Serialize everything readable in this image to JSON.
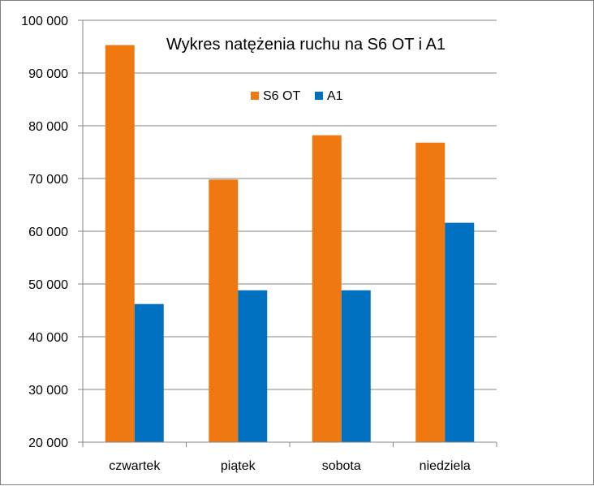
{
  "chart_data": {
    "type": "bar",
    "title": "Wykres natężenia ruchu na S6 OT i A1",
    "categories": [
      "czwartek",
      "piątek",
      "sobota",
      "niedziela"
    ],
    "series": [
      {
        "name": "S6 OT",
        "color": "#f07810",
        "values": [
          95300,
          69800,
          78200,
          76800
        ]
      },
      {
        "name": "A1",
        "color": "#0070c0",
        "values": [
          46200,
          48800,
          48800,
          61600
        ]
      }
    ],
    "ylim": [
      20000,
      100000
    ],
    "yticks": [
      "20 000",
      "30 000",
      "40 000",
      "50 000",
      "60 000",
      "70 000",
      "80 000",
      "90 000",
      "100 000"
    ],
    "grid": true,
    "legend_position": "top-center"
  }
}
